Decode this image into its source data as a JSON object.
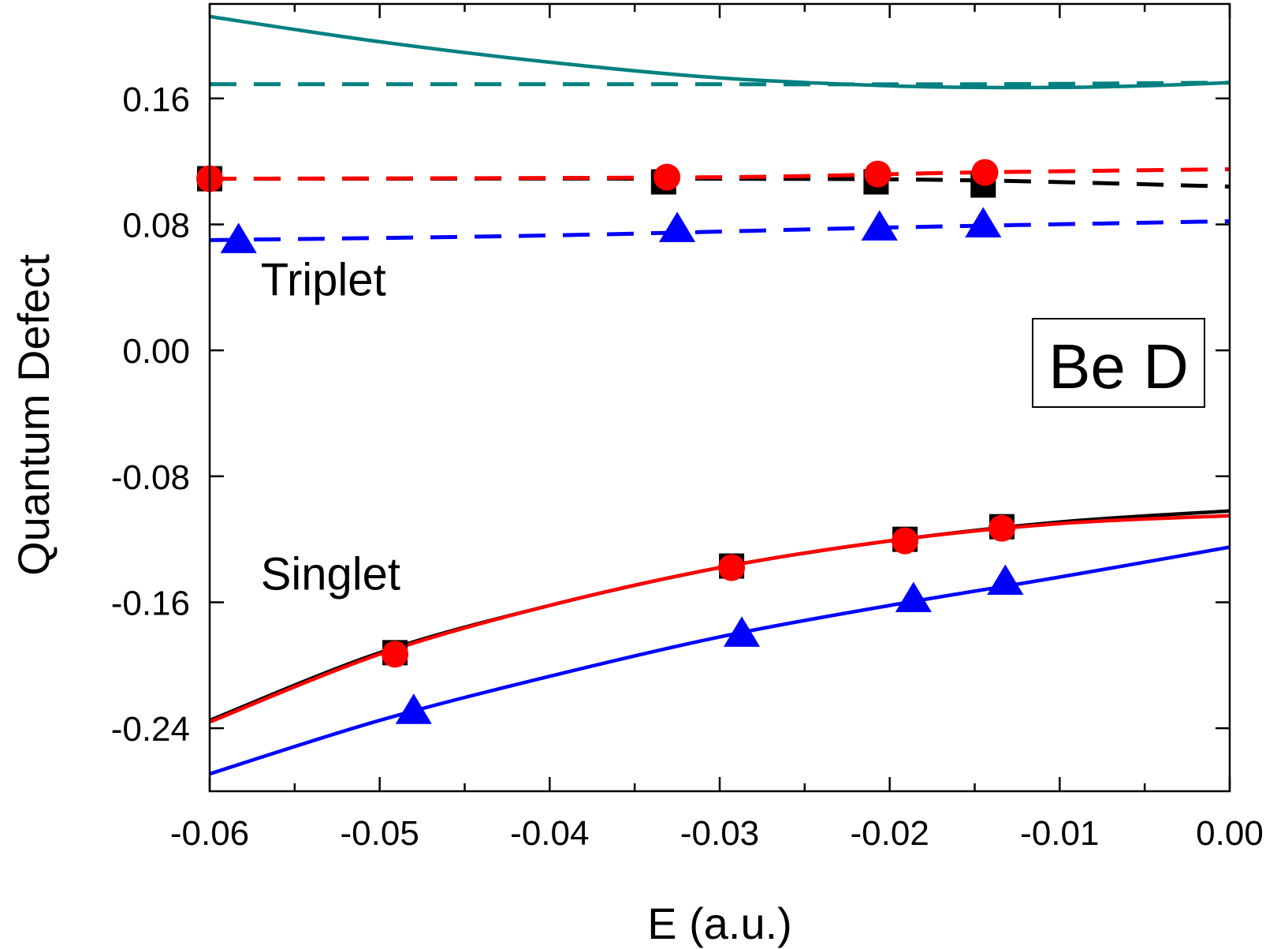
{
  "chart_data": {
    "type": "line",
    "title": "",
    "xlabel": "E (a.u.)",
    "ylabel": "Quantum Defect",
    "xlim": [
      -0.06,
      0.0
    ],
    "ylim": [
      -0.28,
      0.22
    ],
    "xticks": [
      -0.06,
      -0.05,
      -0.04,
      -0.03,
      -0.02,
      -0.01,
      0.0
    ],
    "xtick_labels": [
      "-0.06",
      "-0.05",
      "-0.04",
      "-0.03",
      "-0.02",
      "-0.01",
      "0.00"
    ],
    "yticks": [
      -0.24,
      -0.16,
      -0.08,
      0.0,
      0.08,
      0.16
    ],
    "ytick_labels": [
      "-0.24",
      "-0.16",
      "-0.08",
      "0.00",
      "0.08",
      "0.16"
    ],
    "legend": {
      "label": "Be D",
      "position": "right"
    },
    "annotations": [
      {
        "text": "Triplet",
        "x": -0.057,
        "y": 0.035
      },
      {
        "text": "Singlet",
        "x": -0.057,
        "y": -0.152
      }
    ],
    "colors": {
      "black": "#000000",
      "red": "#ff0000",
      "blue": "#0000ff",
      "teal": "#008080"
    },
    "series": [
      {
        "name": "teal-solid",
        "color": "#008080",
        "style": "solid",
        "marker": "none",
        "x": [
          -0.06,
          -0.05,
          -0.04,
          -0.03,
          -0.02,
          -0.015,
          -0.01,
          -0.005,
          0.0
        ],
        "y": [
          0.212,
          0.196,
          0.183,
          0.173,
          0.168,
          0.167,
          0.167,
          0.168,
          0.17
        ]
      },
      {
        "name": "teal-dashed",
        "color": "#008080",
        "style": "dashed",
        "marker": "none",
        "x": [
          -0.06,
          -0.03,
          -0.015,
          0.0
        ],
        "y": [
          0.169,
          0.169,
          0.169,
          0.17
        ]
      },
      {
        "name": "black-dashed",
        "color": "#000000",
        "style": "dashed",
        "marker": "none",
        "x": [
          -0.06,
          -0.03,
          -0.015,
          0.0
        ],
        "y": [
          0.109,
          0.109,
          0.108,
          0.104
        ]
      },
      {
        "name": "black-triplet-points",
        "color": "#000000",
        "style": "none",
        "marker": "square",
        "x": [
          -0.06,
          -0.0333,
          -0.0208,
          -0.0145
        ],
        "y": [
          0.109,
          0.107,
          0.107,
          0.105
        ]
      },
      {
        "name": "red-dashed",
        "color": "#ff0000",
        "style": "dashed",
        "marker": "none",
        "x": [
          -0.06,
          -0.03,
          -0.015,
          0.0
        ],
        "y": [
          0.109,
          0.11,
          0.113,
          0.115
        ]
      },
      {
        "name": "red-triplet-points",
        "color": "#ff0000",
        "style": "none",
        "marker": "circle",
        "x": [
          -0.06,
          -0.0331,
          -0.0207,
          -0.0144
        ],
        "y": [
          0.109,
          0.11,
          0.112,
          0.113
        ]
      },
      {
        "name": "blue-dashed",
        "color": "#0000ff",
        "style": "dashed",
        "marker": "none",
        "x": [
          -0.06,
          -0.04,
          -0.02,
          0.0
        ],
        "y": [
          0.07,
          0.073,
          0.078,
          0.082
        ]
      },
      {
        "name": "blue-triplet-points",
        "color": "#0000ff",
        "style": "none",
        "marker": "triangle",
        "x": [
          -0.0583,
          -0.0325,
          -0.0206,
          -0.0145
        ],
        "y": [
          0.07,
          0.077,
          0.078,
          0.08
        ]
      },
      {
        "name": "black-singlet-solid",
        "color": "#000000",
        "style": "solid",
        "marker": "none",
        "x": [
          -0.06,
          -0.05,
          -0.04,
          -0.03,
          -0.02,
          -0.01,
          0.0
        ],
        "y": [
          -0.235,
          -0.192,
          -0.162,
          -0.138,
          -0.121,
          -0.109,
          -0.102
        ]
      },
      {
        "name": "red-singlet-solid",
        "color": "#ff0000",
        "style": "solid",
        "marker": "none",
        "x": [
          -0.06,
          -0.05,
          -0.04,
          -0.03,
          -0.02,
          -0.01,
          0.0
        ],
        "y": [
          -0.236,
          -0.193,
          -0.162,
          -0.138,
          -0.121,
          -0.11,
          -0.105
        ]
      },
      {
        "name": "black-singlet-points",
        "color": "#000000",
        "style": "none",
        "marker": "square",
        "x": [
          -0.0491,
          -0.0293,
          -0.0191,
          -0.0134
        ],
        "y": [
          -0.192,
          -0.137,
          -0.12,
          -0.112
        ]
      },
      {
        "name": "red-singlet-points",
        "color": "#ff0000",
        "style": "none",
        "marker": "circle",
        "x": [
          -0.0491,
          -0.0293,
          -0.0191,
          -0.0134
        ],
        "y": [
          -0.193,
          -0.138,
          -0.121,
          -0.113
        ]
      },
      {
        "name": "blue-singlet-solid",
        "color": "#0000ff",
        "style": "solid",
        "marker": "none",
        "x": [
          -0.06,
          -0.05,
          -0.04,
          -0.03,
          -0.02,
          -0.01,
          0.0
        ],
        "y": [
          -0.269,
          -0.235,
          -0.207,
          -0.182,
          -0.162,
          -0.144,
          -0.125
        ]
      },
      {
        "name": "blue-singlet-points",
        "color": "#0000ff",
        "style": "none",
        "marker": "triangle",
        "x": [
          -0.048,
          -0.0287,
          -0.0186,
          -0.0132
        ],
        "y": [
          -0.229,
          -0.18,
          -0.158,
          -0.147
        ]
      }
    ]
  }
}
